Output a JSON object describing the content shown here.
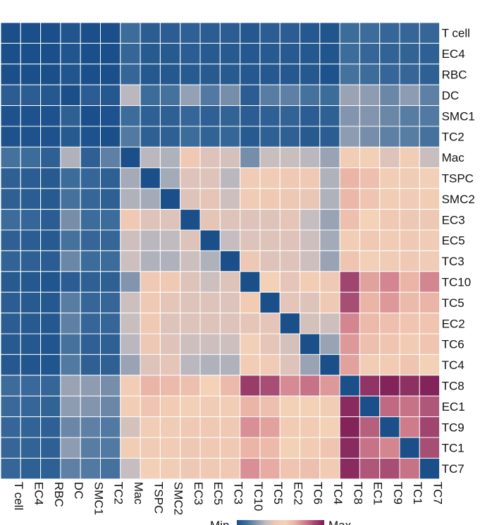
{
  "chart_data": {
    "type": "heatmap",
    "rows": [
      "T cell",
      "EC4",
      "RBC",
      "DC",
      "SMC1",
      "TC2",
      "Mac",
      "TSPC",
      "SMC2",
      "EC3",
      "EC5",
      "TC3",
      "TC10",
      "TC5",
      "EC2",
      "TC6",
      "TC4",
      "TC8",
      "EC1",
      "TC9",
      "TC1",
      "TC7"
    ],
    "cols": [
      "T cell",
      "EC4",
      "RBC",
      "DC",
      "SMC1",
      "TC2",
      "Mac",
      "TSPC",
      "SMC2",
      "EC3",
      "EC5",
      "TC3",
      "TC10",
      "TC5",
      "EC2",
      "TC6",
      "TC4",
      "TC8",
      "EC1",
      "TC9",
      "TC1",
      "TC7"
    ],
    "legend": {
      "min_label": "Min",
      "max_label": "Max"
    },
    "colorscale": [
      "#1a4f8a",
      "#3f6f9c",
      "#8496ae",
      "#c2bcc0",
      "#efc8b4",
      "#f3d2b8",
      "#e9b2a6",
      "#cf7d8c",
      "#a44a72",
      "#7a1a55"
    ],
    "values": [
      [
        0.0,
        0.0,
        0.0,
        0.02,
        0.0,
        0.0,
        0.1,
        0.05,
        0.05,
        0.06,
        0.05,
        0.05,
        0.03,
        0.05,
        0.05,
        0.03,
        0.02,
        0.1,
        0.1,
        0.08,
        0.08,
        0.08
      ],
      [
        0.0,
        0.0,
        0.0,
        0.02,
        0.0,
        0.0,
        0.08,
        0.04,
        0.04,
        0.05,
        0.04,
        0.04,
        0.03,
        0.04,
        0.04,
        0.03,
        0.02,
        0.1,
        0.08,
        0.07,
        0.07,
        0.06
      ],
      [
        0.0,
        0.0,
        0.0,
        0.02,
        0.0,
        0.0,
        0.08,
        0.03,
        0.03,
        0.04,
        0.04,
        0.04,
        0.03,
        0.03,
        0.03,
        0.03,
        0.01,
        0.12,
        0.1,
        0.08,
        0.08,
        0.06
      ],
      [
        0.05,
        0.05,
        0.03,
        0.0,
        0.05,
        0.03,
        0.32,
        0.1,
        0.12,
        0.25,
        0.14,
        0.2,
        0.05,
        0.15,
        0.16,
        0.12,
        0.1,
        0.26,
        0.24,
        0.18,
        0.24,
        0.16
      ],
      [
        0.01,
        0.01,
        0.01,
        0.06,
        0.0,
        0.01,
        0.1,
        0.06,
        0.06,
        0.08,
        0.06,
        0.07,
        0.05,
        0.06,
        0.07,
        0.05,
        0.06,
        0.22,
        0.22,
        0.18,
        0.15,
        0.14
      ],
      [
        0.01,
        0.01,
        0.01,
        0.04,
        0.01,
        0.0,
        0.14,
        0.06,
        0.06,
        0.1,
        0.07,
        0.08,
        0.04,
        0.06,
        0.06,
        0.04,
        0.05,
        0.24,
        0.2,
        0.16,
        0.15,
        0.12
      ],
      [
        0.12,
        0.1,
        0.06,
        0.3,
        0.06,
        0.16,
        0.0,
        0.32,
        0.3,
        0.45,
        0.4,
        0.38,
        0.2,
        0.35,
        0.35,
        0.32,
        0.26,
        0.5,
        0.52,
        0.4,
        0.5,
        0.35
      ],
      [
        0.06,
        0.05,
        0.04,
        0.1,
        0.08,
        0.06,
        0.28,
        0.0,
        0.28,
        0.4,
        0.4,
        0.32,
        0.48,
        0.48,
        0.46,
        0.45,
        0.3,
        0.66,
        0.62,
        0.5,
        0.48,
        0.52
      ],
      [
        0.06,
        0.05,
        0.04,
        0.12,
        0.08,
        0.06,
        0.3,
        0.28,
        0.0,
        0.4,
        0.42,
        0.36,
        0.48,
        0.46,
        0.44,
        0.43,
        0.3,
        0.65,
        0.6,
        0.5,
        0.48,
        0.5
      ],
      [
        0.1,
        0.08,
        0.05,
        0.2,
        0.1,
        0.1,
        0.45,
        0.4,
        0.4,
        0.0,
        0.42,
        0.4,
        0.4,
        0.4,
        0.42,
        0.34,
        0.26,
        0.62,
        0.55,
        0.46,
        0.44,
        0.44
      ],
      [
        0.06,
        0.05,
        0.04,
        0.12,
        0.08,
        0.08,
        0.36,
        0.32,
        0.33,
        0.4,
        0.0,
        0.34,
        0.4,
        0.4,
        0.4,
        0.36,
        0.28,
        0.5,
        0.46,
        0.48,
        0.46,
        0.48
      ],
      [
        0.07,
        0.06,
        0.05,
        0.18,
        0.1,
        0.1,
        0.36,
        0.3,
        0.3,
        0.36,
        0.3,
        0.0,
        0.44,
        0.4,
        0.4,
        0.36,
        0.26,
        0.6,
        0.52,
        0.48,
        0.46,
        0.48
      ],
      [
        0.04,
        0.03,
        0.02,
        0.05,
        0.06,
        0.06,
        0.22,
        0.46,
        0.46,
        0.4,
        0.36,
        0.4,
        0.0,
        0.56,
        0.42,
        0.5,
        0.45,
        0.9,
        0.7,
        0.76,
        0.66,
        0.76
      ],
      [
        0.05,
        0.04,
        0.03,
        0.15,
        0.08,
        0.08,
        0.36,
        0.46,
        0.42,
        0.4,
        0.4,
        0.4,
        0.58,
        0.0,
        0.42,
        0.4,
        0.45,
        0.88,
        0.66,
        0.72,
        0.64,
        0.66
      ],
      [
        0.05,
        0.04,
        0.03,
        0.16,
        0.08,
        0.08,
        0.35,
        0.46,
        0.4,
        0.4,
        0.4,
        0.4,
        0.42,
        0.42,
        0.0,
        0.38,
        0.36,
        0.76,
        0.64,
        0.62,
        0.6,
        0.6
      ],
      [
        0.04,
        0.03,
        0.02,
        0.12,
        0.06,
        0.06,
        0.32,
        0.44,
        0.4,
        0.36,
        0.36,
        0.36,
        0.52,
        0.42,
        0.38,
        0.0,
        0.26,
        0.72,
        0.62,
        0.6,
        0.58,
        0.6
      ],
      [
        0.03,
        0.02,
        0.02,
        0.14,
        0.06,
        0.06,
        0.26,
        0.4,
        0.42,
        0.32,
        0.3,
        0.3,
        0.5,
        0.48,
        0.4,
        0.26,
        0.0,
        0.7,
        0.5,
        0.58,
        0.6,
        0.56
      ],
      [
        0.1,
        0.09,
        0.08,
        0.26,
        0.24,
        0.2,
        0.5,
        0.66,
        0.64,
        0.62,
        0.55,
        0.64,
        0.92,
        0.88,
        0.75,
        0.8,
        0.72,
        0.0,
        0.94,
        0.98,
        0.95,
        0.98
      ],
      [
        0.09,
        0.08,
        0.07,
        0.24,
        0.22,
        0.18,
        0.5,
        0.6,
        0.58,
        0.52,
        0.48,
        0.5,
        0.66,
        0.62,
        0.56,
        0.56,
        0.5,
        0.96,
        0.0,
        0.82,
        0.8,
        0.86
      ],
      [
        0.08,
        0.07,
        0.06,
        0.18,
        0.16,
        0.14,
        0.38,
        0.5,
        0.48,
        0.46,
        0.46,
        0.46,
        0.74,
        0.7,
        0.58,
        0.58,
        0.56,
        0.98,
        0.84,
        0.0,
        0.78,
        0.9
      ],
      [
        0.08,
        0.07,
        0.06,
        0.24,
        0.15,
        0.14,
        0.5,
        0.48,
        0.48,
        0.44,
        0.46,
        0.46,
        0.66,
        0.64,
        0.56,
        0.58,
        0.6,
        0.96,
        0.8,
        0.76,
        0.0,
        0.88
      ],
      [
        0.08,
        0.06,
        0.06,
        0.16,
        0.14,
        0.12,
        0.34,
        0.52,
        0.5,
        0.44,
        0.46,
        0.46,
        0.74,
        0.68,
        0.6,
        0.62,
        0.58,
        0.96,
        0.86,
        0.88,
        0.8,
        0.0
      ]
    ]
  }
}
